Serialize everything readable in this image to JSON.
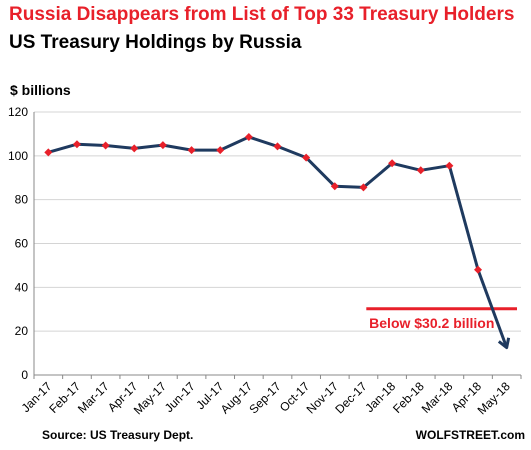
{
  "header": {
    "title": "Russia Disappears from List of Top 33 Treasury Holders",
    "subtitle": "US Treasury Holdings by Russia"
  },
  "footer": {
    "source": "Source: US Treasury Dept.",
    "credit": "WOLFSTREET.com"
  },
  "chart_data": {
    "type": "line",
    "title": "US Treasury Holdings by Russia",
    "ylabel": "$ billions",
    "xlabel": "",
    "ylim": [
      0,
      120
    ],
    "yticks": [
      0,
      20,
      40,
      60,
      80,
      100,
      120
    ],
    "grid": true,
    "categories": [
      "Jan-17",
      "Feb-17",
      "Mar-17",
      "Apr-17",
      "May-17",
      "Jun-17",
      "Jul-17",
      "Aug-17",
      "Sep-17",
      "Oct-17",
      "Nov-17",
      "Dec-17",
      "Jan-18",
      "Feb-18",
      "Mar-18",
      "Apr-18",
      "May-18"
    ],
    "series": [
      {
        "values": [
          101.6,
          105.3,
          104.7,
          103.4,
          104.9,
          102.6,
          102.6,
          108.6,
          104.3,
          99.2,
          86.1,
          85.6,
          96.6,
          93.4,
          95.5,
          48.0,
          12.5
        ],
        "color": "#1f3a5f",
        "marker_color": "#e8202a"
      }
    ],
    "annotation": {
      "label": "Below $30.2 billion",
      "value": 30.2,
      "color": "#e8202a",
      "x_start_category": "Dec-17"
    }
  }
}
